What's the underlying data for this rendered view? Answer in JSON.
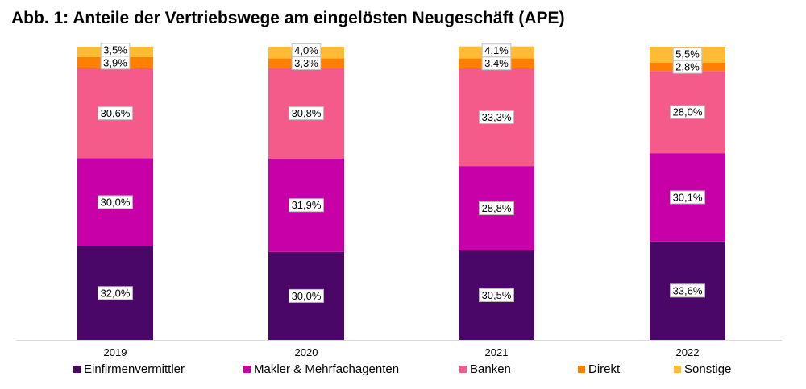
{
  "chart_data": {
    "type": "bar",
    "stacked": true,
    "title": "Abb. 1: Anteile der Vertriebswege am eingelösten Neugeschäft (APE)",
    "categories": [
      "2019",
      "2020",
      "2021",
      "2022"
    ],
    "series": [
      {
        "name": "Einfirmenvermittler",
        "color": "#4a0768",
        "values": [
          32.0,
          30.0,
          30.5,
          33.6
        ],
        "labels": [
          "32,0%",
          "30,0%",
          "30,5%",
          "33,6%"
        ]
      },
      {
        "name": "Makler & Mehrfachagenten",
        "color": "#c800a8",
        "values": [
          30.0,
          31.9,
          28.8,
          30.1
        ],
        "labels": [
          "30,0%",
          "31,9%",
          "28,8%",
          "30,1%"
        ]
      },
      {
        "name": "Banken",
        "color": "#f45a8a",
        "values": [
          30.6,
          30.8,
          33.3,
          28.0
        ],
        "labels": [
          "30,6%",
          "30,8%",
          "33,3%",
          "28,0%"
        ]
      },
      {
        "name": "Direkt",
        "color": "#ff8000",
        "values": [
          3.9,
          3.3,
          3.4,
          2.8
        ],
        "labels": [
          "3,9%",
          "3,3%",
          "3,4%",
          "2,8%"
        ]
      },
      {
        "name": "Sonstige",
        "color": "#ffbb33",
        "values": [
          3.5,
          4.0,
          4.1,
          5.5
        ],
        "labels": [
          "3,5%",
          "4,0%",
          "4,1%",
          "5,5%"
        ]
      }
    ],
    "xlabel": "",
    "ylabel": "",
    "ylim": [
      0,
      100
    ],
    "grid": false,
    "legend": "bottom"
  }
}
